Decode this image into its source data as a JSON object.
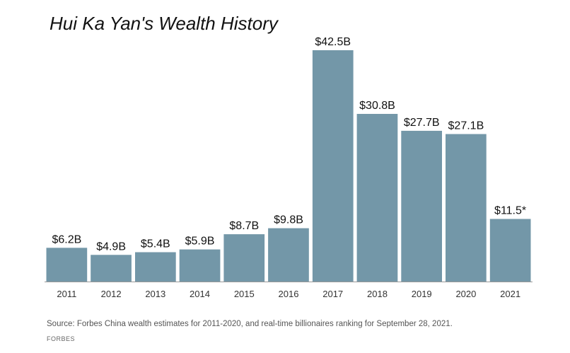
{
  "chart_data": {
    "type": "bar",
    "title": "Hui Ka Yan's Wealth History",
    "xlabel": "",
    "ylabel": "",
    "categories": [
      "2011",
      "2012",
      "2013",
      "2014",
      "2015",
      "2016",
      "2017",
      "2018",
      "2019",
      "2020",
      "2021"
    ],
    "values": [
      6.2,
      4.9,
      5.4,
      5.9,
      8.7,
      9.8,
      42.5,
      30.8,
      27.7,
      27.1,
      11.5
    ],
    "value_labels": [
      "$6.2B",
      "$4.9B",
      "$5.4B",
      "$5.9B",
      "$8.7B",
      "$9.8B",
      "$42.5B",
      "$30.8B",
      "$27.7B",
      "$27.1B",
      "$11.5*"
    ],
    "ylim": [
      0,
      42.5
    ],
    "grid": false,
    "bar_color": "#7397a8",
    "axis_color": "#999999"
  },
  "footer": {
    "source": "Source: Forbes China wealth estimates for 2011-2020, and real-time billionaires ranking for September 28, 2021.",
    "brand": "FORBES"
  }
}
